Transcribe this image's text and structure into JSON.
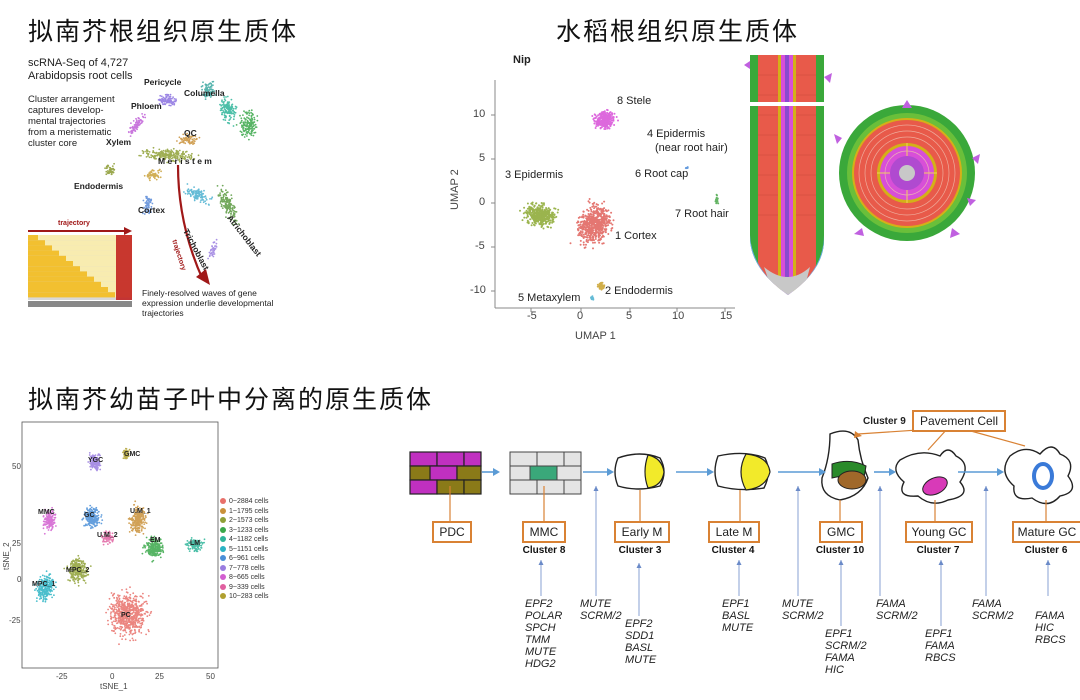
{
  "headings": {
    "arabidopsis_root": "拟南芥根组织原生质体",
    "rice_root": "水稻根组织原生质体",
    "arabidopsis_leaf": "拟南芥幼苗子叶中分离的原生质体"
  },
  "arab_root": {
    "intro": [
      "scRNA-Seq of 4,727",
      "Arabidopsis root cells"
    ],
    "note": [
      "Cluster arrangement",
      "captures develop-",
      "mental trajectories",
      "from a meristematic",
      "cluster core"
    ],
    "labels": {
      "pericycle": "Pericycle",
      "columella": "Columella",
      "phloem": "Phloem",
      "xylem": "Xylem",
      "qc": "QC",
      "meristem": "M e r i s t e m",
      "endodermis": "Endodermis",
      "cortex": "Cortex",
      "trichoblast": "Trichoblast",
      "atrichoblast": "Atrichoblast",
      "trajectory": "trajectory",
      "trajectory_arrow": "trajectory"
    },
    "caption": [
      "Finely-resolved waves of gene",
      "expression underlie developmental",
      "trajectories"
    ]
  },
  "rice_root": {
    "plot_title": "Nip",
    "x_label": "UMAP 1",
    "y_label": "UMAP 2",
    "x_ticks": [
      "-5",
      "0",
      "5",
      "10",
      "15"
    ],
    "y_ticks": [
      "10",
      "5",
      "0",
      "-5",
      "-10"
    ],
    "clusters": {
      "stele": "8 Stele",
      "epidermis4_a": "4 Epidermis",
      "epidermis4_b": "(near root hair)",
      "rootcap": "6 Root cap",
      "epidermis3": "3 Epidermis",
      "roothair": "7 Root hair",
      "cortex": "1 Cortex",
      "endodermis": "2 Endodermis",
      "metaxylem": "5 Metaxylem"
    }
  },
  "tsne": {
    "x_label": "tSNE_1",
    "y_label": "tSNE_2",
    "x_ticks": [
      "-25",
      "0",
      "25",
      "50"
    ],
    "y_ticks": [
      "50",
      "25",
      "0",
      "-25"
    ],
    "labels": {
      "ygc": "YGC",
      "gmc": "GMC",
      "mmc": "MMC",
      "gc": "GC",
      "um1": "U.M_1",
      "um2": "U.M_2",
      "em": "EM",
      "lm": "LM",
      "mpc2": "MPC_2",
      "mpc1": "MPC_1",
      "pc": "PC"
    },
    "legend": [
      {
        "label": "0~2884 cells",
        "color": "#e8706a"
      },
      {
        "label": "1~1795 cells",
        "color": "#c9913a"
      },
      {
        "label": "2~1573 cells",
        "color": "#8fa036"
      },
      {
        "label": "3~1233 cells",
        "color": "#3aa84a"
      },
      {
        "label": "4~1182 cells",
        "color": "#2fb59a"
      },
      {
        "label": "5~1151 cells",
        "color": "#2ab3c4"
      },
      {
        "label": "6~961 cells",
        "color": "#4a8fd8"
      },
      {
        "label": "7~778 cells",
        "color": "#9a7de0"
      },
      {
        "label": "8~665 cells",
        "color": "#d25fd0"
      },
      {
        "label": "9~339 cells",
        "color": "#e060a0"
      },
      {
        "label": "10~283 cells",
        "color": "#b0a030"
      }
    ]
  },
  "stomata": {
    "cluster9": "Cluster 9",
    "pavement": "Pavement Cell",
    "stages": [
      {
        "box": "PDC",
        "cluster": ""
      },
      {
        "box": "MMC",
        "cluster": "Cluster 8"
      },
      {
        "box": "Early M",
        "cluster": "Cluster 3"
      },
      {
        "box": "Late M",
        "cluster": "Cluster 4"
      },
      {
        "box": "GMC",
        "cluster": "Cluster 10"
      },
      {
        "box": "Young GC",
        "cluster": "Cluster 7"
      },
      {
        "box": "Mature GC",
        "cluster": "Cluster 6"
      }
    ],
    "genes": {
      "g1": [
        "EPF2",
        "POLAR",
        "SPCH",
        "TMM",
        "MUTE",
        "HDG2"
      ],
      "g2": [
        "MUTE",
        "SCRM/2"
      ],
      "g3": [
        "EPF2",
        "SDD1",
        "BASL",
        "MUTE"
      ],
      "g4": [
        "EPF1",
        "BASL",
        "MUTE"
      ],
      "g5": [
        "MUTE",
        "SCRM/2"
      ],
      "g6": [
        "EPF1",
        "SCRM/2",
        "FAMA",
        "HIC"
      ],
      "g7": [
        "FAMA",
        "SCRM/2"
      ],
      "g8": [
        "EPF1",
        "FAMA",
        "RBCS"
      ],
      "g9": [
        "FAMA",
        "SCRM/2"
      ],
      "g10": [
        "FAMA",
        "HIC",
        "RBCS"
      ]
    }
  },
  "colors": {
    "arrow_blue": "#5b9bd5",
    "box_orange": "#d98234",
    "cell_purple": "#c030c0",
    "cell_olive": "#8a7a18",
    "gmc_green": "#2a8a2a",
    "gmc_brown": "#a0682a",
    "yellow": "#f2ea2a"
  }
}
